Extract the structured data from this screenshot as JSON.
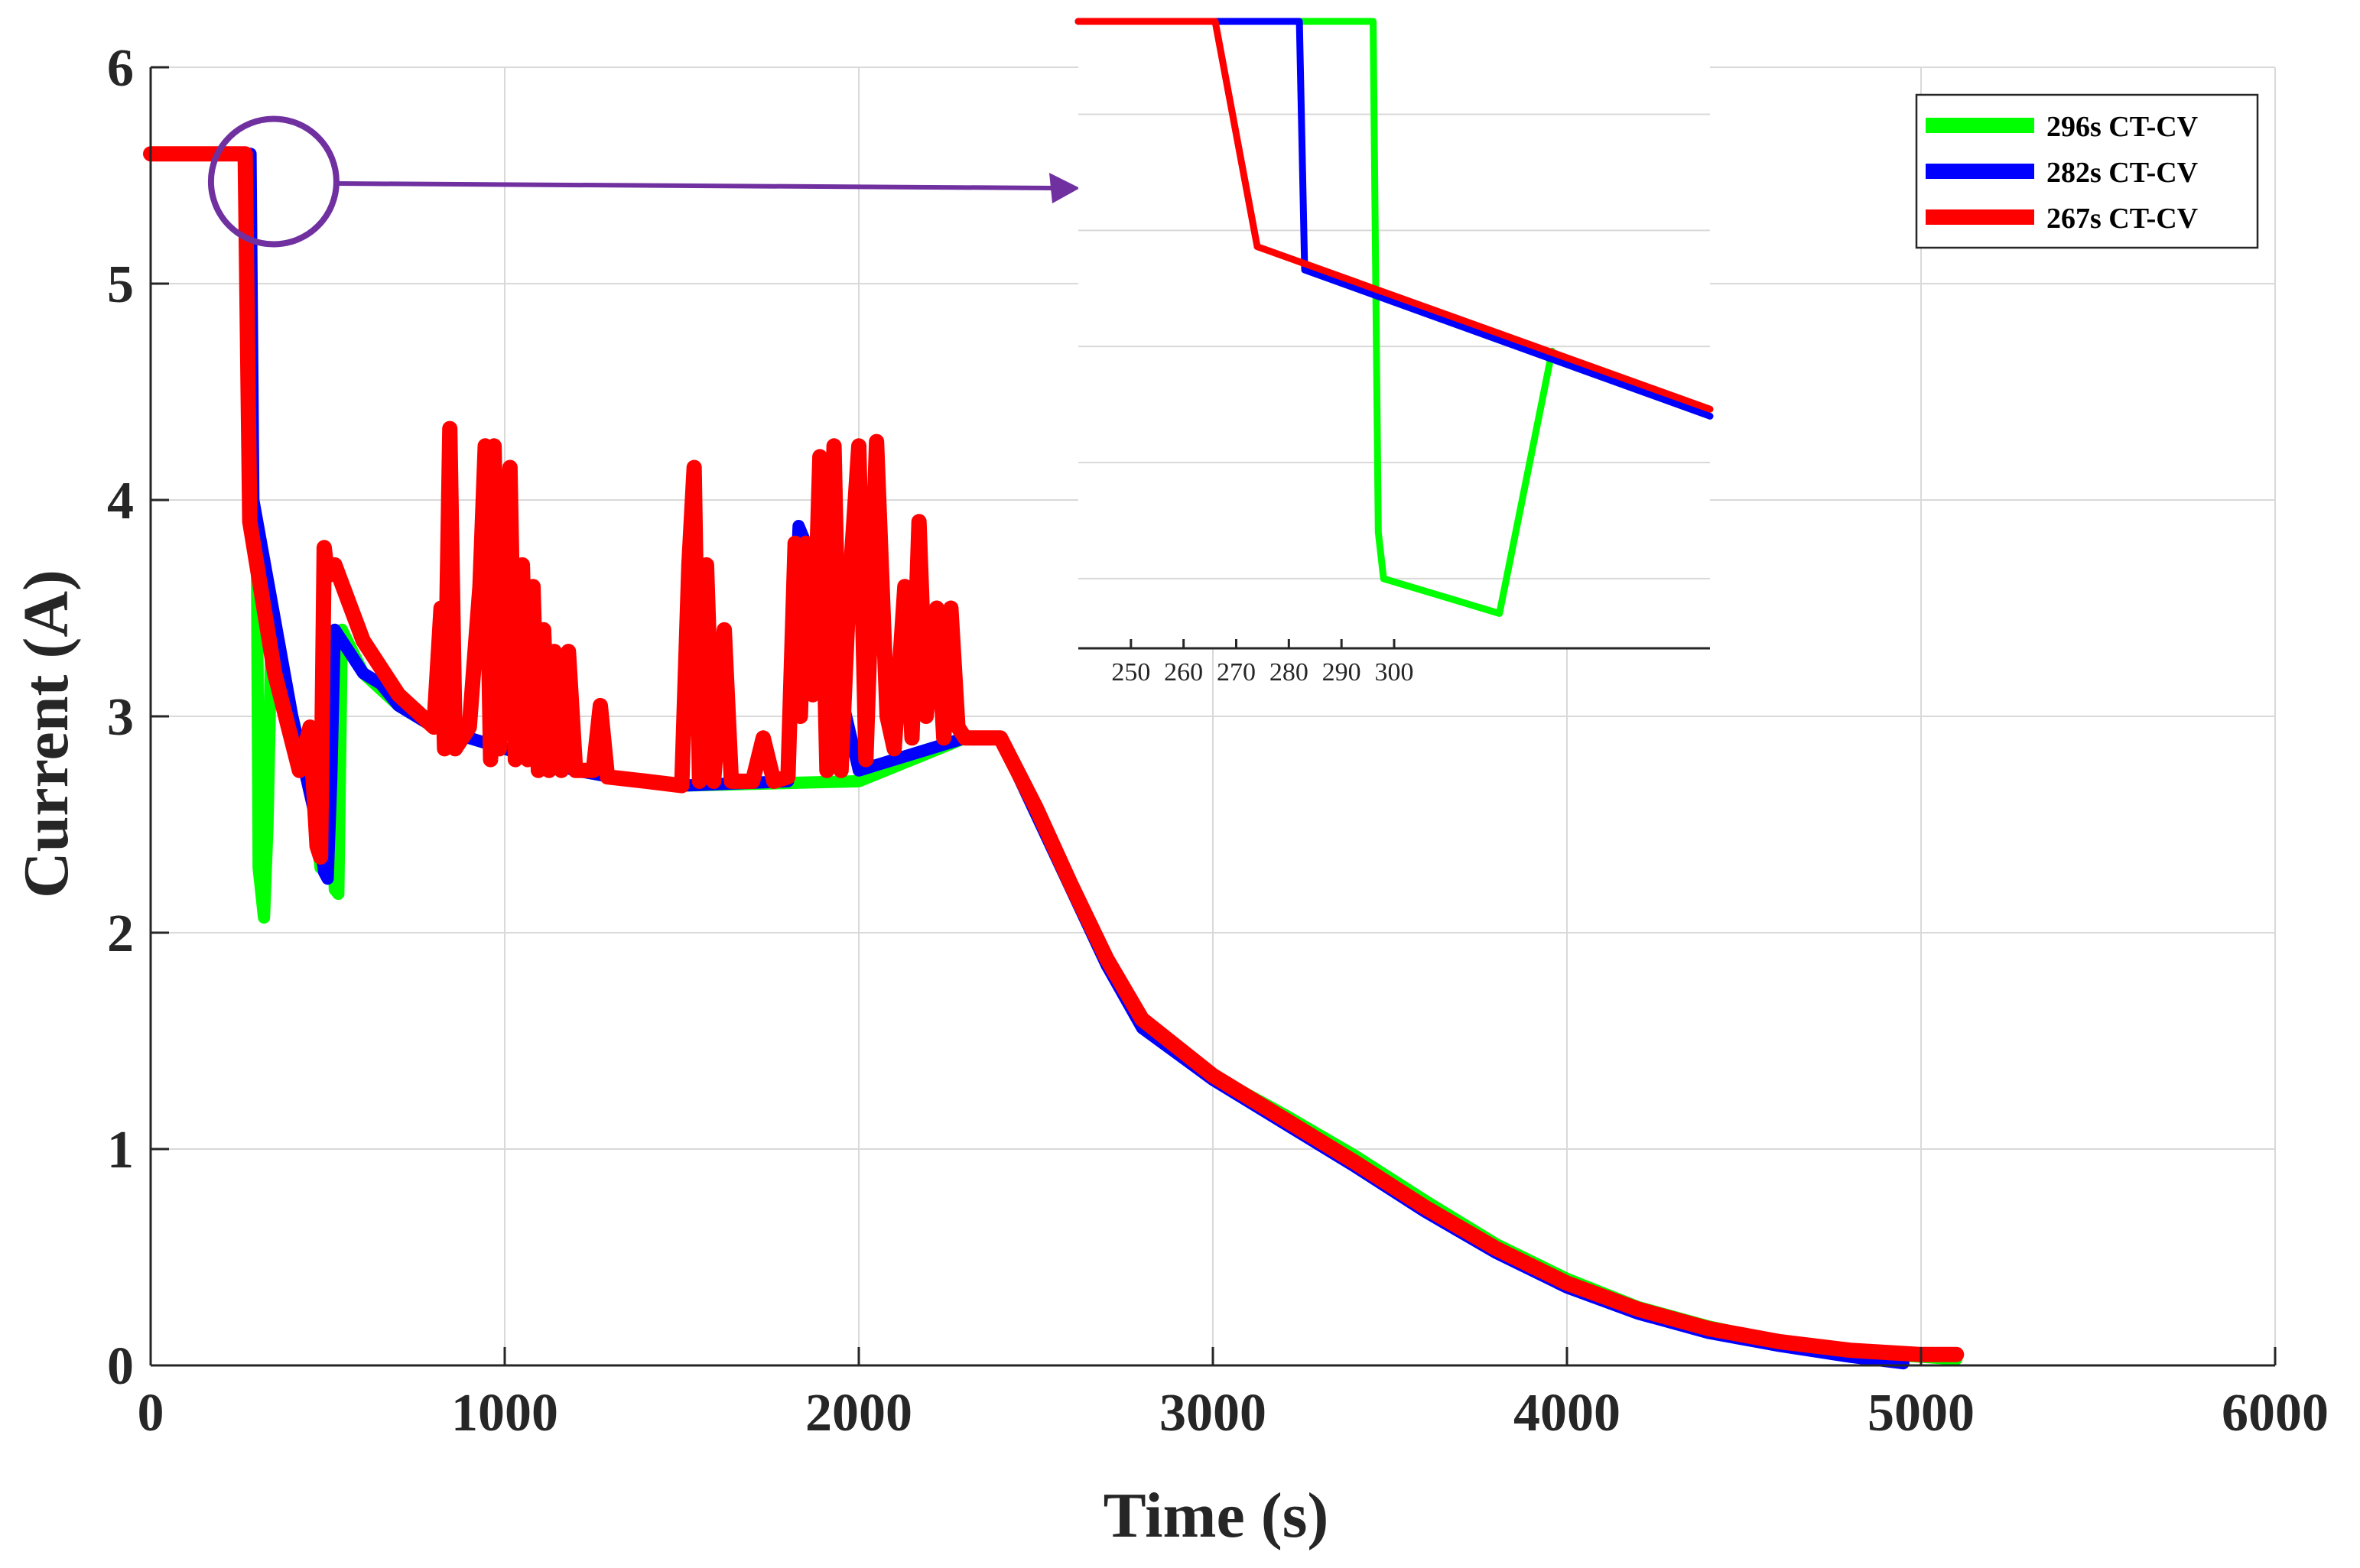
{
  "chart_data": {
    "type": "line",
    "title": "",
    "xlabel": "Time (s)",
    "ylabel": "Current (A)",
    "xlim": [
      0,
      6000
    ],
    "ylim": [
      0,
      6
    ],
    "x_ticks": [
      0,
      1000,
      2000,
      3000,
      4000,
      5000,
      6000
    ],
    "y_ticks": [
      0,
      1,
      2,
      3,
      4,
      5,
      6
    ],
    "grid": true,
    "legend_position": "top-right",
    "series": [
      {
        "name": "296s CT-CV",
        "color": "#00ff00",
        "points": [
          [
            0,
            5.6
          ],
          [
            280,
            5.6
          ],
          [
            285,
            4.0
          ],
          [
            300,
            3.8
          ],
          [
            305,
            2.3
          ],
          [
            320,
            2.07
          ],
          [
            330,
            2.5
          ],
          [
            340,
            3.3
          ],
          [
            400,
            3.0
          ],
          [
            460,
            2.6
          ],
          [
            480,
            2.3
          ],
          [
            500,
            3.3
          ],
          [
            520,
            2.2
          ],
          [
            530,
            2.18
          ],
          [
            540,
            3.4
          ],
          [
            600,
            3.2
          ],
          [
            700,
            3.05
          ],
          [
            800,
            2.95
          ],
          [
            900,
            2.9
          ],
          [
            1000,
            2.85
          ],
          [
            1100,
            2.8
          ],
          [
            1200,
            2.75
          ],
          [
            1300,
            2.72
          ],
          [
            1400,
            2.7
          ],
          [
            1500,
            2.68
          ],
          [
            2000,
            2.7
          ],
          [
            2300,
            2.9
          ],
          [
            2400,
            2.9
          ],
          [
            2500,
            2.55
          ],
          [
            2600,
            2.2
          ],
          [
            2700,
            1.85
          ],
          [
            2800,
            1.58
          ],
          [
            3000,
            1.34
          ],
          [
            3200,
            1.16
          ],
          [
            3400,
            0.97
          ],
          [
            3600,
            0.76
          ],
          [
            3800,
            0.56
          ],
          [
            4000,
            0.4
          ],
          [
            4200,
            0.27
          ],
          [
            4400,
            0.18
          ],
          [
            4600,
            0.11
          ],
          [
            4800,
            0.06
          ],
          [
            5000,
            0.04
          ],
          [
            5100,
            0.03
          ]
        ]
      },
      {
        "name": "282s CT-CV",
        "color": "#0000ff",
        "points": [
          [
            0,
            5.6
          ],
          [
            282,
            5.6
          ],
          [
            290,
            4.0
          ],
          [
            400,
            3.0
          ],
          [
            470,
            2.5
          ],
          [
            490,
            2.28
          ],
          [
            500,
            2.25
          ],
          [
            510,
            2.7
          ],
          [
            520,
            3.4
          ],
          [
            600,
            3.2
          ],
          [
            650,
            3.15
          ],
          [
            700,
            3.05
          ],
          [
            800,
            2.95
          ],
          [
            900,
            2.9
          ],
          [
            1000,
            2.85
          ],
          [
            1100,
            2.8
          ],
          [
            1200,
            2.75
          ],
          [
            1300,
            2.72
          ],
          [
            1400,
            2.7
          ],
          [
            1500,
            2.68
          ],
          [
            1800,
            2.7
          ],
          [
            1830,
            3.88
          ],
          [
            1850,
            3.8
          ],
          [
            2000,
            2.75
          ],
          [
            2300,
            2.9
          ],
          [
            2400,
            2.9
          ],
          [
            2500,
            2.55
          ],
          [
            2600,
            2.2
          ],
          [
            2700,
            1.85
          ],
          [
            2800,
            1.56
          ],
          [
            3000,
            1.32
          ],
          [
            3200,
            1.12
          ],
          [
            3400,
            0.92
          ],
          [
            3600,
            0.71
          ],
          [
            3800,
            0.52
          ],
          [
            4000,
            0.36
          ],
          [
            4200,
            0.24
          ],
          [
            4400,
            0.15
          ],
          [
            4600,
            0.09
          ],
          [
            4800,
            0.04
          ],
          [
            4950,
            0.01
          ]
        ]
      },
      {
        "name": "267s CT-CV",
        "color": "#ff0000",
        "points": [
          [
            0,
            5.6
          ],
          [
            267,
            5.6
          ],
          [
            280,
            3.9
          ],
          [
            350,
            3.2
          ],
          [
            420,
            2.75
          ],
          [
            450,
            2.95
          ],
          [
            470,
            2.4
          ],
          [
            480,
            2.35
          ],
          [
            490,
            3.78
          ],
          [
            500,
            3.65
          ],
          [
            520,
            3.7
          ],
          [
            600,
            3.35
          ],
          [
            700,
            3.1
          ],
          [
            800,
            2.95
          ],
          [
            820,
            3.5
          ],
          [
            830,
            2.85
          ],
          [
            845,
            4.33
          ],
          [
            860,
            2.85
          ],
          [
            900,
            2.95
          ],
          [
            930,
            3.6
          ],
          [
            945,
            4.25
          ],
          [
            960,
            2.8
          ],
          [
            970,
            4.25
          ],
          [
            985,
            2.85
          ],
          [
            1000,
            3.8
          ],
          [
            1015,
            4.15
          ],
          [
            1030,
            2.8
          ],
          [
            1050,
            3.7
          ],
          [
            1065,
            2.8
          ],
          [
            1080,
            3.6
          ],
          [
            1095,
            2.75
          ],
          [
            1110,
            3.4
          ],
          [
            1125,
            2.75
          ],
          [
            1140,
            3.3
          ],
          [
            1160,
            2.75
          ],
          [
            1180,
            3.3
          ],
          [
            1200,
            2.75
          ],
          [
            1250,
            2.75
          ],
          [
            1270,
            3.05
          ],
          [
            1290,
            2.72
          ],
          [
            1400,
            2.7
          ],
          [
            1500,
            2.68
          ],
          [
            1520,
            3.7
          ],
          [
            1535,
            4.15
          ],
          [
            1550,
            2.7
          ],
          [
            1570,
            3.7
          ],
          [
            1590,
            2.7
          ],
          [
            1620,
            3.4
          ],
          [
            1640,
            2.7
          ],
          [
            1700,
            2.7
          ],
          [
            1730,
            2.9
          ],
          [
            1760,
            2.7
          ],
          [
            1800,
            2.72
          ],
          [
            1820,
            3.8
          ],
          [
            1835,
            3.0
          ],
          [
            1850,
            3.8
          ],
          [
            1870,
            3.1
          ],
          [
            1890,
            4.2
          ],
          [
            1910,
            2.75
          ],
          [
            1930,
            4.25
          ],
          [
            1950,
            2.75
          ],
          [
            1970,
            3.5
          ],
          [
            2000,
            4.25
          ],
          [
            2020,
            2.8
          ],
          [
            2050,
            4.27
          ],
          [
            2080,
            3.0
          ],
          [
            2100,
            2.85
          ],
          [
            2130,
            3.6
          ],
          [
            2150,
            2.9
          ],
          [
            2170,
            3.9
          ],
          [
            2190,
            3.0
          ],
          [
            2220,
            3.5
          ],
          [
            2240,
            2.9
          ],
          [
            2260,
            3.5
          ],
          [
            2280,
            2.95
          ],
          [
            2300,
            2.9
          ],
          [
            2400,
            2.9
          ],
          [
            2500,
            2.58
          ],
          [
            2600,
            2.22
          ],
          [
            2700,
            1.88
          ],
          [
            2800,
            1.6
          ],
          [
            3000,
            1.34
          ],
          [
            3200,
            1.14
          ],
          [
            3400,
            0.94
          ],
          [
            3600,
            0.73
          ],
          [
            3800,
            0.54
          ],
          [
            4000,
            0.38
          ],
          [
            4200,
            0.26
          ],
          [
            4400,
            0.17
          ],
          [
            4600,
            0.11
          ],
          [
            4800,
            0.07
          ],
          [
            5000,
            0.05
          ],
          [
            5100,
            0.05
          ]
        ]
      }
    ],
    "annotation": {
      "type": "zoom-circle",
      "center_data": [
        300,
        5.5
      ],
      "arrow_color": "#7030a0"
    },
    "inset": {
      "type": "line",
      "x_tick_labels": [
        "250",
        "260",
        "270",
        "280",
        "290",
        "300"
      ],
      "x_ticks": [
        250,
        260,
        270,
        280,
        290,
        300
      ],
      "xlim": [
        240,
        360
      ],
      "ylim": [
        3.2,
        5.9
      ],
      "series": [
        {
          "name": "296s CT-CV",
          "color": "#00ff00",
          "points": [
            [
              240,
              5.9
            ],
            [
              296,
              5.9
            ],
            [
              297,
              3.7
            ],
            [
              298,
              3.5
            ],
            [
              320,
              3.35
            ],
            [
              330,
              4.48
            ]
          ]
        },
        {
          "name": "282s CT-CV",
          "color": "#0000ff",
          "points": [
            [
              240,
              5.9
            ],
            [
              282,
              5.9
            ],
            [
              283,
              4.83
            ],
            [
              360,
              4.2
            ]
          ]
        },
        {
          "name": "267s CT-CV",
          "color": "#ff0000",
          "points": [
            [
              240,
              5.9
            ],
            [
              266,
              5.9
            ],
            [
              274,
              4.93
            ],
            [
              360,
              4.23
            ]
          ]
        }
      ]
    }
  }
}
